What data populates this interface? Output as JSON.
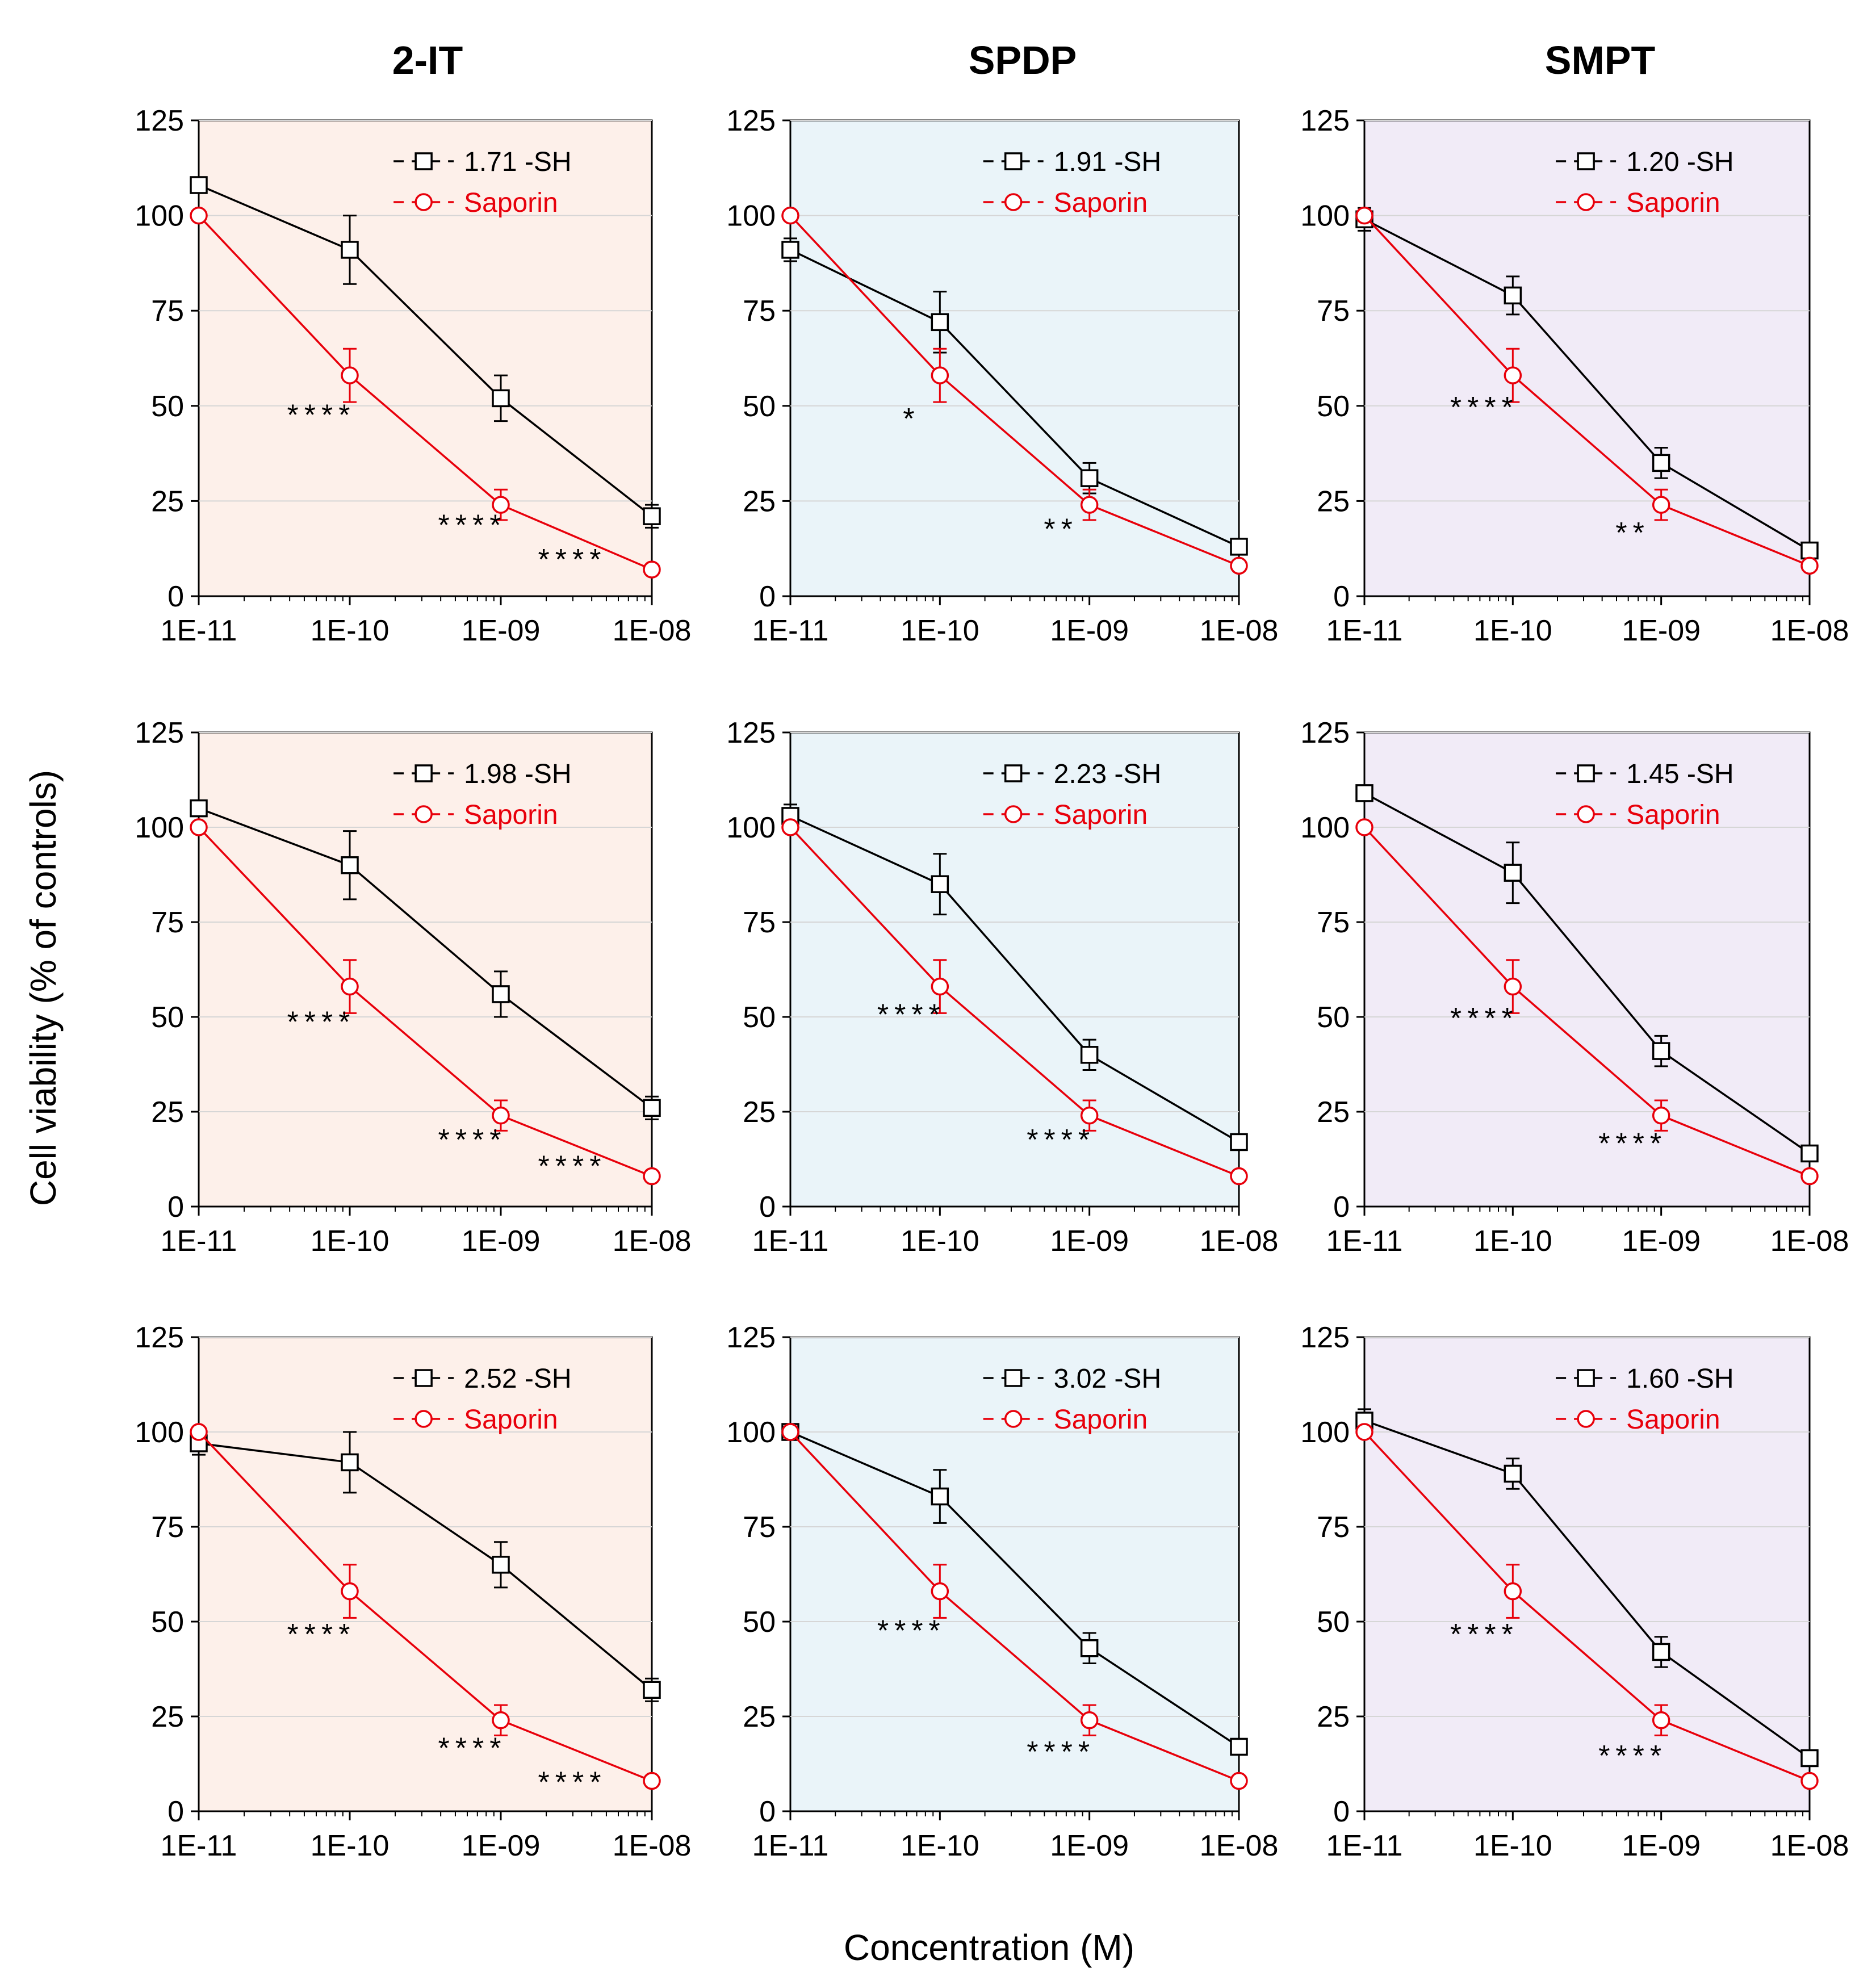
{
  "figure": {
    "column_titles": [
      "2-IT",
      "SPDP",
      "SMPT"
    ],
    "ylabel": "Cell viability (% of controls)",
    "xlabel": "Concentration (M)",
    "panel_colors": {
      "2-IT": "#fdf0ea",
      "SPDP": "#eaf4f9",
      "SMPT": "#f1ebf7"
    },
    "series_colors": {
      "sh": "#000000",
      "saporin": "#e8000b"
    }
  },
  "chart_data": [
    {
      "type": "line",
      "column": "2-IT",
      "row": 1,
      "x": [
        "1E-11",
        "1E-10",
        "1E-09",
        "1E-08"
      ],
      "ylim": [
        0,
        125
      ],
      "yticks": [
        0,
        25,
        50,
        75,
        100,
        125
      ],
      "series": [
        {
          "name": "1.71 -SH",
          "values": [
            108,
            91,
            52,
            21
          ],
          "errors": [
            1,
            9,
            6,
            3
          ]
        },
        {
          "name": "Saporin",
          "values": [
            100,
            58,
            24,
            7
          ],
          "errors": [
            0,
            7,
            4,
            1
          ]
        }
      ],
      "annotations": [
        {
          "x": "1E-10",
          "y": 45,
          "text": "****"
        },
        {
          "x": "1E-09",
          "y": 16,
          "text": "****"
        },
        {
          "x": "1E-08",
          "y": 7,
          "text": "****"
        }
      ]
    },
    {
      "type": "line",
      "column": "SPDP",
      "row": 1,
      "x": [
        "1E-11",
        "1E-10",
        "1E-09",
        "1E-08"
      ],
      "ylim": [
        0,
        125
      ],
      "yticks": [
        0,
        25,
        50,
        75,
        100,
        125
      ],
      "series": [
        {
          "name": "1.91 -SH",
          "values": [
            91,
            72,
            31,
            13
          ],
          "errors": [
            3,
            8,
            4,
            1
          ]
        },
        {
          "name": "Saporin",
          "values": [
            100,
            58,
            24,
            8
          ],
          "errors": [
            0,
            7,
            4,
            1
          ]
        }
      ],
      "annotations": [
        {
          "x": "1E-10",
          "y": 44,
          "text": "*"
        },
        {
          "x": "1E-09",
          "y": 15,
          "text": "**"
        }
      ]
    },
    {
      "type": "line",
      "column": "SMPT",
      "row": 1,
      "x": [
        "1E-11",
        "1E-10",
        "1E-09",
        "1E-08"
      ],
      "ylim": [
        0,
        125
      ],
      "yticks": [
        0,
        25,
        50,
        75,
        100,
        125
      ],
      "series": [
        {
          "name": "1.20 -SH",
          "values": [
            99,
            79,
            35,
            12
          ],
          "errors": [
            3,
            5,
            4,
            1
          ]
        },
        {
          "name": "Saporin",
          "values": [
            100,
            58,
            24,
            8
          ],
          "errors": [
            0,
            7,
            4,
            1
          ]
        }
      ],
      "annotations": [
        {
          "x": "1E-10",
          "y": 47,
          "text": "****"
        },
        {
          "x": "1E-09",
          "y": 14,
          "text": "**"
        }
      ]
    },
    {
      "type": "line",
      "column": "2-IT",
      "row": 2,
      "x": [
        "1E-11",
        "1E-10",
        "1E-09",
        "1E-08"
      ],
      "ylim": [
        0,
        125
      ],
      "yticks": [
        0,
        25,
        50,
        75,
        100,
        125
      ],
      "series": [
        {
          "name": "1.98 -SH",
          "values": [
            105,
            90,
            56,
            26
          ],
          "errors": [
            1,
            9,
            6,
            3
          ]
        },
        {
          "name": "Saporin",
          "values": [
            100,
            58,
            24,
            8
          ],
          "errors": [
            0,
            7,
            4,
            1
          ]
        }
      ],
      "annotations": [
        {
          "x": "1E-10",
          "y": 46,
          "text": "****"
        },
        {
          "x": "1E-09",
          "y": 15,
          "text": "****"
        },
        {
          "x": "1E-08",
          "y": 8,
          "text": "****"
        }
      ]
    },
    {
      "type": "line",
      "column": "SPDP",
      "row": 2,
      "x": [
        "1E-11",
        "1E-10",
        "1E-09",
        "1E-08"
      ],
      "ylim": [
        0,
        125
      ],
      "yticks": [
        0,
        25,
        50,
        75,
        100,
        125
      ],
      "series": [
        {
          "name": "2.23 -SH",
          "values": [
            103,
            85,
            40,
            17
          ],
          "errors": [
            3,
            8,
            4,
            1
          ]
        },
        {
          "name": "Saporin",
          "values": [
            100,
            58,
            24,
            8
          ],
          "errors": [
            0,
            7,
            4,
            1
          ]
        }
      ],
      "annotations": [
        {
          "x": "1E-10",
          "y": 48,
          "text": "****"
        },
        {
          "x": "1E-09",
          "y": 15,
          "text": "****"
        }
      ]
    },
    {
      "type": "line",
      "column": "SMPT",
      "row": 2,
      "x": [
        "1E-11",
        "1E-10",
        "1E-09",
        "1E-08"
      ],
      "ylim": [
        0,
        125
      ],
      "yticks": [
        0,
        25,
        50,
        75,
        100,
        125
      ],
      "series": [
        {
          "name": "1.45 -SH",
          "values": [
            109,
            88,
            41,
            14
          ],
          "errors": [
            1,
            8,
            4,
            1
          ]
        },
        {
          "name": "Saporin",
          "values": [
            100,
            58,
            24,
            8
          ],
          "errors": [
            0,
            7,
            4,
            1
          ]
        }
      ],
      "annotations": [
        {
          "x": "1E-10",
          "y": 47,
          "text": "****"
        },
        {
          "x": "1E-09",
          "y": 14,
          "text": "****"
        }
      ]
    },
    {
      "type": "line",
      "column": "2-IT",
      "row": 3,
      "x": [
        "1E-11",
        "1E-10",
        "1E-09",
        "1E-08"
      ],
      "ylim": [
        0,
        125
      ],
      "yticks": [
        0,
        25,
        50,
        75,
        100,
        125
      ],
      "series": [
        {
          "name": "2.52 -SH",
          "values": [
            97,
            92,
            65,
            32
          ],
          "errors": [
            3,
            8,
            6,
            3
          ]
        },
        {
          "name": "Saporin",
          "values": [
            100,
            58,
            24,
            8
          ],
          "errors": [
            0,
            7,
            4,
            1
          ]
        }
      ],
      "annotations": [
        {
          "x": "1E-10",
          "y": 44,
          "text": "****"
        },
        {
          "x": "1E-09",
          "y": 14,
          "text": "****"
        },
        {
          "x": "1E-08",
          "y": 5,
          "text": "****"
        }
      ]
    },
    {
      "type": "line",
      "column": "SPDP",
      "row": 3,
      "x": [
        "1E-11",
        "1E-10",
        "1E-09",
        "1E-08"
      ],
      "ylim": [
        0,
        125
      ],
      "yticks": [
        0,
        25,
        50,
        75,
        100,
        125
      ],
      "series": [
        {
          "name": "3.02 -SH",
          "values": [
            100,
            83,
            43,
            17
          ],
          "errors": [
            1,
            7,
            4,
            1
          ]
        },
        {
          "name": "Saporin",
          "values": [
            100,
            58,
            24,
            8
          ],
          "errors": [
            0,
            7,
            4,
            1
          ]
        }
      ],
      "annotations": [
        {
          "x": "1E-10",
          "y": 45,
          "text": "****"
        },
        {
          "x": "1E-09",
          "y": 13,
          "text": "****"
        }
      ]
    },
    {
      "type": "line",
      "column": "SMPT",
      "row": 3,
      "x": [
        "1E-11",
        "1E-10",
        "1E-09",
        "1E-08"
      ],
      "ylim": [
        0,
        125
      ],
      "yticks": [
        0,
        25,
        50,
        75,
        100,
        125
      ],
      "series": [
        {
          "name": "1.60 -SH",
          "values": [
            103,
            89,
            42,
            14
          ],
          "errors": [
            3,
            4,
            4,
            1
          ]
        },
        {
          "name": "Saporin",
          "values": [
            100,
            58,
            24,
            8
          ],
          "errors": [
            0,
            7,
            4,
            1
          ]
        }
      ],
      "annotations": [
        {
          "x": "1E-10",
          "y": 44,
          "text": "****"
        },
        {
          "x": "1E-09",
          "y": 12,
          "text": "****"
        }
      ]
    }
  ]
}
